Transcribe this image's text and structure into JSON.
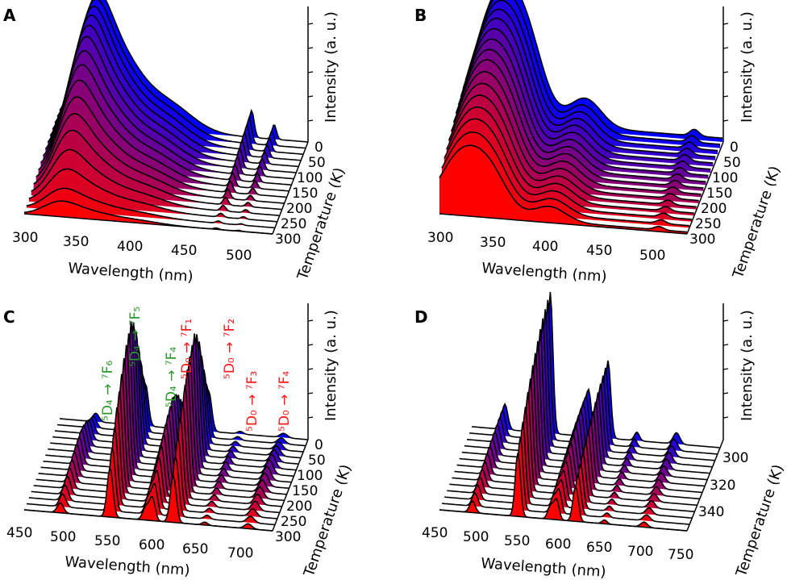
{
  "figure_title": "",
  "chart_data": [
    {
      "panel": "A",
      "type": "area",
      "subtype": "waterfall-3d",
      "x_label": "Wavelength (nm)",
      "y_label": "Temperature (K)",
      "z_label": "Intensity (a. u.)",
      "x_ticks": [
        "300",
        "350",
        "400",
        "450",
        "500"
      ],
      "y_ticks": [
        "0",
        "50",
        "100",
        "150",
        "200",
        "250",
        "300"
      ],
      "xlim": [
        300,
        520
      ],
      "ylim": [
        0,
        300
      ],
      "temperatures": [
        300,
        280,
        260,
        240,
        220,
        200,
        180,
        160,
        140,
        120,
        100,
        80,
        60,
        40,
        20,
        0
      ],
      "peak_intensity": [
        0.12,
        0.17,
        0.27,
        0.37,
        0.47,
        0.55,
        0.63,
        0.71,
        0.78,
        0.84,
        0.9,
        0.94,
        0.97,
        0.99,
        1.0,
        1.0
      ],
      "color_scale": [
        "#ff0000",
        "#0000ff"
      ]
    },
    {
      "panel": "B",
      "type": "area",
      "subtype": "waterfall-3d",
      "x_label": "Wavelength (nm)",
      "y_label": "Temperature (K)",
      "z_label": "Intensity (a. u.)",
      "x_ticks": [
        "300",
        "350",
        "400",
        "450",
        "500"
      ],
      "y_ticks": [
        "0",
        "50",
        "100",
        "150",
        "200",
        "250",
        "300"
      ],
      "xlim": [
        300,
        520
      ],
      "ylim": [
        0,
        300
      ],
      "temperatures": [
        300,
        280,
        260,
        240,
        220,
        200,
        180,
        160,
        140,
        120,
        100,
        80,
        60,
        40,
        20,
        0
      ],
      "peak_intensity": [
        0.5,
        0.55,
        0.6,
        0.64,
        0.68,
        0.72,
        0.76,
        0.8,
        0.83,
        0.86,
        0.89,
        0.92,
        0.94,
        0.96,
        0.98,
        1.0
      ],
      "color_scale": [
        "#ff0000",
        "#0000ff"
      ]
    },
    {
      "panel": "C",
      "type": "area",
      "subtype": "waterfall-3d",
      "x_label": "Wavelength (nm)",
      "y_label": "Temperature (K)",
      "z_label": "Intensity (a. u.)",
      "x_ticks": [
        "450",
        "500",
        "550",
        "600",
        "650",
        "700"
      ],
      "y_ticks": [
        "0",
        "50",
        "100",
        "150",
        "200",
        "250",
        "300"
      ],
      "xlim": [
        450,
        725
      ],
      "ylim": [
        0,
        300
      ],
      "temperatures": [
        300,
        280,
        260,
        240,
        220,
        200,
        180,
        160,
        140,
        120,
        100,
        80,
        60,
        40,
        20,
        0
      ],
      "peak_intensity": [
        0.35,
        0.45,
        0.55,
        0.65,
        0.72,
        0.8,
        0.87,
        0.92,
        0.96,
        1.0,
        0.95,
        0.85,
        0.7,
        0.55,
        0.4,
        0.3
      ],
      "emission_lines_nm": [
        490,
        545,
        585,
        620
      ],
      "annotations": [
        {
          "text": "⁵D₄ → ⁷F₆",
          "color": "#2a9a2a"
        },
        {
          "text": "⁵D₄ → ⁷F₅",
          "color": "#2a9a2a"
        },
        {
          "text": "⁵D₄ → ⁷F₄",
          "color": "#2a9a2a"
        },
        {
          "text": "⁵D₀ → ⁷F₁",
          "color": "#ff1a1a"
        },
        {
          "text": "⁵D₀ → ⁷F₂",
          "color": "#ff1a1a"
        },
        {
          "text": "⁵D₀ → ⁷F₃",
          "color": "#ff1a1a"
        },
        {
          "text": "⁵D₀ → ⁷F₄",
          "color": "#ff1a1a"
        }
      ],
      "color_scale": [
        "#ff0000",
        "#0000ff"
      ]
    },
    {
      "panel": "D",
      "type": "area",
      "subtype": "waterfall-3d",
      "x_label": "Wavelength (nm)",
      "y_label": "Temperature (K)",
      "z_label": "Intensity (a. u.)",
      "x_ticks": [
        "450",
        "500",
        "550",
        "600",
        "650",
        "700",
        "750"
      ],
      "y_ticks": [
        "300",
        "320",
        "340"
      ],
      "xlim": [
        450,
        750
      ],
      "ylim": [
        293,
        350
      ],
      "temperatures": [
        350,
        346,
        342,
        338,
        334,
        330,
        326,
        322,
        318,
        314,
        310,
        306,
        302,
        298
      ],
      "peak_intensity": [
        0.45,
        0.52,
        0.58,
        0.64,
        0.7,
        0.75,
        0.8,
        0.84,
        0.88,
        0.92,
        0.95,
        0.97,
        0.99,
        1.0
      ],
      "emission_lines_nm": [
        490,
        545,
        585,
        620
      ],
      "color_scale": [
        "#ff0000",
        "#0000ff"
      ]
    }
  ]
}
